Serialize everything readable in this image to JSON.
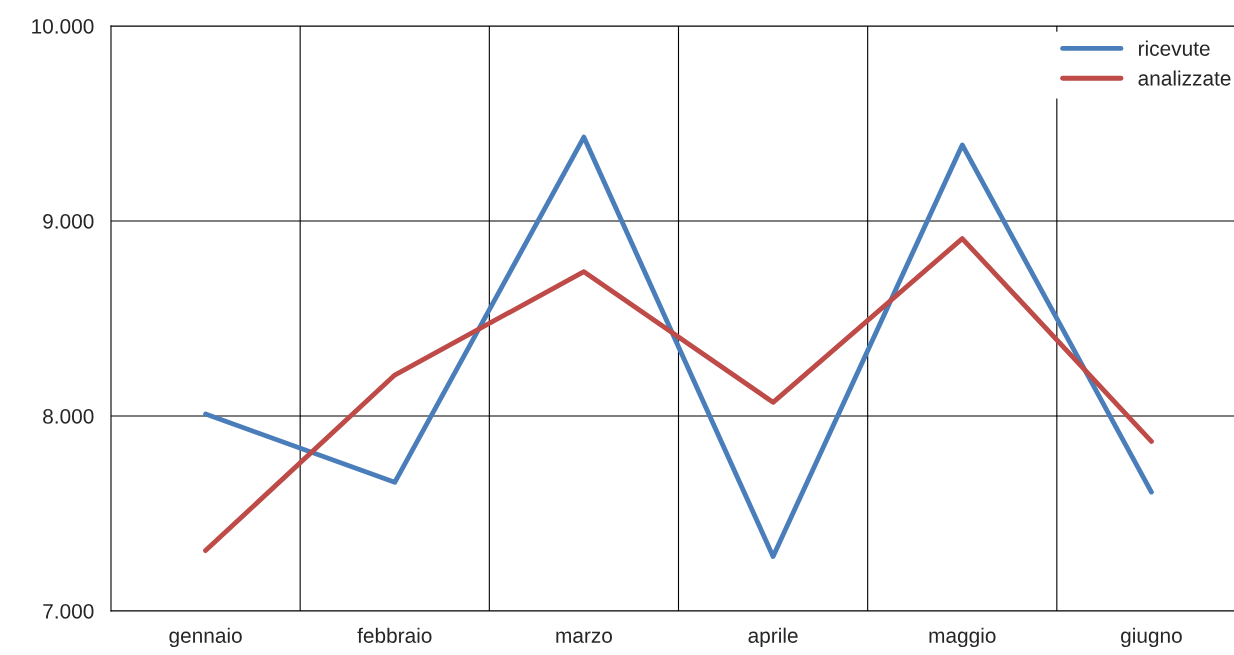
{
  "chart_data": {
    "type": "line",
    "categories": [
      "gennaio",
      "febbraio",
      "marzo",
      "aprile",
      "maggio",
      "giugno"
    ],
    "series": [
      {
        "name": "ricevute",
        "color": "#4a7ebb",
        "values": [
          8010,
          7660,
          9430,
          7280,
          9390,
          7610
        ]
      },
      {
        "name": "analizzate",
        "color": "#be4b48",
        "values": [
          7310,
          8210,
          8740,
          8070,
          8910,
          7870
        ]
      }
    ],
    "ylim": [
      7000,
      10000
    ],
    "yticks": [
      {
        "value": 7000,
        "label": "7.000"
      },
      {
        "value": 8000,
        "label": "8.000"
      },
      {
        "value": 9000,
        "label": "9.000"
      },
      {
        "value": 10000,
        "label": "10.000"
      }
    ],
    "grid": true,
    "legend": "top right",
    "marker": "none",
    "line_style": "solid"
  }
}
